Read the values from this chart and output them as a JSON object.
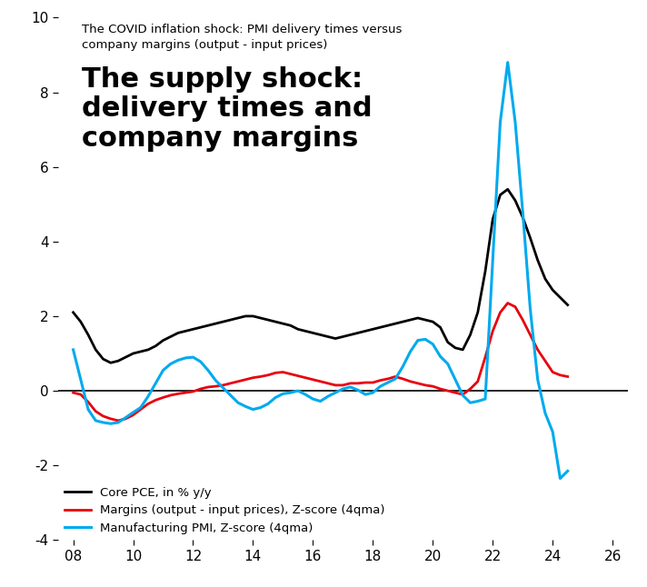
{
  "title_small": "The COVID inflation shock: PMI delivery times versus\ncompany margins (output - input prices)",
  "title_big": "The supply shock:\ndelivery times and\ncompany margins",
  "ylim": [
    -4,
    10
  ],
  "xlim": [
    7.5,
    26.5
  ],
  "xticks": [
    8,
    10,
    12,
    14,
    16,
    18,
    20,
    22,
    24,
    26
  ],
  "yticks": [
    -4,
    -2,
    0,
    2,
    4,
    6,
    8,
    10
  ],
  "background_color": "#ffffff",
  "legend_labels": [
    "Core PCE, in % y/y",
    "Margins (output - input prices), Z-score (4qma)",
    "Manufacturing PMI, Z-score (4qma)"
  ],
  "legend_colors": [
    "#000000",
    "#e8000d",
    "#00aaee"
  ],
  "core_pce_x": [
    8.0,
    8.25,
    8.5,
    8.75,
    9.0,
    9.25,
    9.5,
    9.75,
    10.0,
    10.25,
    10.5,
    10.75,
    11.0,
    11.25,
    11.5,
    11.75,
    12.0,
    12.25,
    12.5,
    12.75,
    13.0,
    13.25,
    13.5,
    13.75,
    14.0,
    14.25,
    14.5,
    14.75,
    15.0,
    15.25,
    15.5,
    15.75,
    16.0,
    16.25,
    16.5,
    16.75,
    17.0,
    17.25,
    17.5,
    17.75,
    18.0,
    18.25,
    18.5,
    18.75,
    19.0,
    19.25,
    19.5,
    19.75,
    20.0,
    20.25,
    20.5,
    20.75,
    21.0,
    21.25,
    21.5,
    21.75,
    22.0,
    22.25,
    22.5,
    22.75,
    23.0,
    23.25,
    23.5,
    23.75,
    24.0,
    24.25,
    24.5
  ],
  "core_pce_y": [
    2.1,
    1.85,
    1.5,
    1.1,
    0.85,
    0.75,
    0.8,
    0.9,
    1.0,
    1.05,
    1.1,
    1.2,
    1.35,
    1.45,
    1.55,
    1.6,
    1.65,
    1.7,
    1.75,
    1.8,
    1.85,
    1.9,
    1.95,
    2.0,
    2.0,
    1.95,
    1.9,
    1.85,
    1.8,
    1.75,
    1.65,
    1.6,
    1.55,
    1.5,
    1.45,
    1.4,
    1.45,
    1.5,
    1.55,
    1.6,
    1.65,
    1.7,
    1.75,
    1.8,
    1.85,
    1.9,
    1.95,
    1.9,
    1.85,
    1.7,
    1.3,
    1.15,
    1.1,
    1.5,
    2.1,
    3.2,
    4.6,
    5.25,
    5.4,
    5.1,
    4.65,
    4.1,
    3.5,
    3.0,
    2.7,
    2.5,
    2.3
  ],
  "margins_x": [
    8.0,
    8.25,
    8.5,
    8.75,
    9.0,
    9.25,
    9.5,
    9.75,
    10.0,
    10.25,
    10.5,
    10.75,
    11.0,
    11.25,
    11.5,
    11.75,
    12.0,
    12.25,
    12.5,
    12.75,
    13.0,
    13.25,
    13.5,
    13.75,
    14.0,
    14.25,
    14.5,
    14.75,
    15.0,
    15.25,
    15.5,
    15.75,
    16.0,
    16.25,
    16.5,
    16.75,
    17.0,
    17.25,
    17.5,
    17.75,
    18.0,
    18.25,
    18.5,
    18.75,
    19.0,
    19.25,
    19.5,
    19.75,
    20.0,
    20.25,
    20.5,
    20.75,
    21.0,
    21.25,
    21.5,
    21.75,
    22.0,
    22.25,
    22.5,
    22.75,
    23.0,
    23.25,
    23.5,
    23.75,
    24.0,
    24.25,
    24.5
  ],
  "margins_y": [
    -0.05,
    -0.1,
    -0.3,
    -0.55,
    -0.68,
    -0.75,
    -0.8,
    -0.75,
    -0.65,
    -0.5,
    -0.35,
    -0.25,
    -0.18,
    -0.12,
    -0.08,
    -0.05,
    -0.02,
    0.05,
    0.1,
    0.12,
    0.15,
    0.2,
    0.25,
    0.3,
    0.35,
    0.38,
    0.42,
    0.48,
    0.5,
    0.45,
    0.4,
    0.35,
    0.3,
    0.25,
    0.2,
    0.15,
    0.15,
    0.2,
    0.2,
    0.22,
    0.22,
    0.28,
    0.32,
    0.38,
    0.32,
    0.25,
    0.2,
    0.15,
    0.12,
    0.05,
    0.0,
    -0.05,
    -0.1,
    0.05,
    0.25,
    0.9,
    1.6,
    2.1,
    2.35,
    2.25,
    1.9,
    1.5,
    1.1,
    0.8,
    0.5,
    0.42,
    0.38
  ],
  "pmi_x": [
    8.0,
    8.25,
    8.5,
    8.75,
    9.0,
    9.25,
    9.5,
    9.75,
    10.0,
    10.25,
    10.5,
    10.75,
    11.0,
    11.25,
    11.5,
    11.75,
    12.0,
    12.25,
    12.5,
    12.75,
    13.0,
    13.25,
    13.5,
    13.75,
    14.0,
    14.25,
    14.5,
    14.75,
    15.0,
    15.25,
    15.5,
    15.75,
    16.0,
    16.25,
    16.5,
    16.75,
    17.0,
    17.25,
    17.5,
    17.75,
    18.0,
    18.25,
    18.5,
    18.75,
    19.0,
    19.25,
    19.5,
    19.75,
    20.0,
    20.25,
    20.5,
    20.75,
    21.0,
    21.25,
    21.5,
    21.75,
    22.0,
    22.25,
    22.5,
    22.75,
    23.0,
    23.25,
    23.5,
    23.75,
    24.0,
    24.25,
    24.5
  ],
  "pmi_y": [
    1.1,
    0.3,
    -0.5,
    -0.8,
    -0.85,
    -0.88,
    -0.85,
    -0.72,
    -0.58,
    -0.45,
    -0.15,
    0.2,
    0.55,
    0.72,
    0.82,
    0.88,
    0.9,
    0.78,
    0.55,
    0.28,
    0.08,
    -0.12,
    -0.32,
    -0.42,
    -0.5,
    -0.45,
    -0.35,
    -0.18,
    -0.08,
    -0.05,
    0.0,
    -0.1,
    -0.22,
    -0.28,
    -0.15,
    -0.05,
    0.05,
    0.1,
    0.02,
    -0.1,
    -0.05,
    0.12,
    0.22,
    0.32,
    0.65,
    1.05,
    1.35,
    1.38,
    1.25,
    0.92,
    0.72,
    0.3,
    -0.12,
    -0.32,
    -0.28,
    -0.22,
    3.5,
    7.2,
    8.8,
    7.2,
    4.8,
    2.2,
    0.3,
    -0.6,
    -1.1,
    -2.35,
    -2.15
  ]
}
